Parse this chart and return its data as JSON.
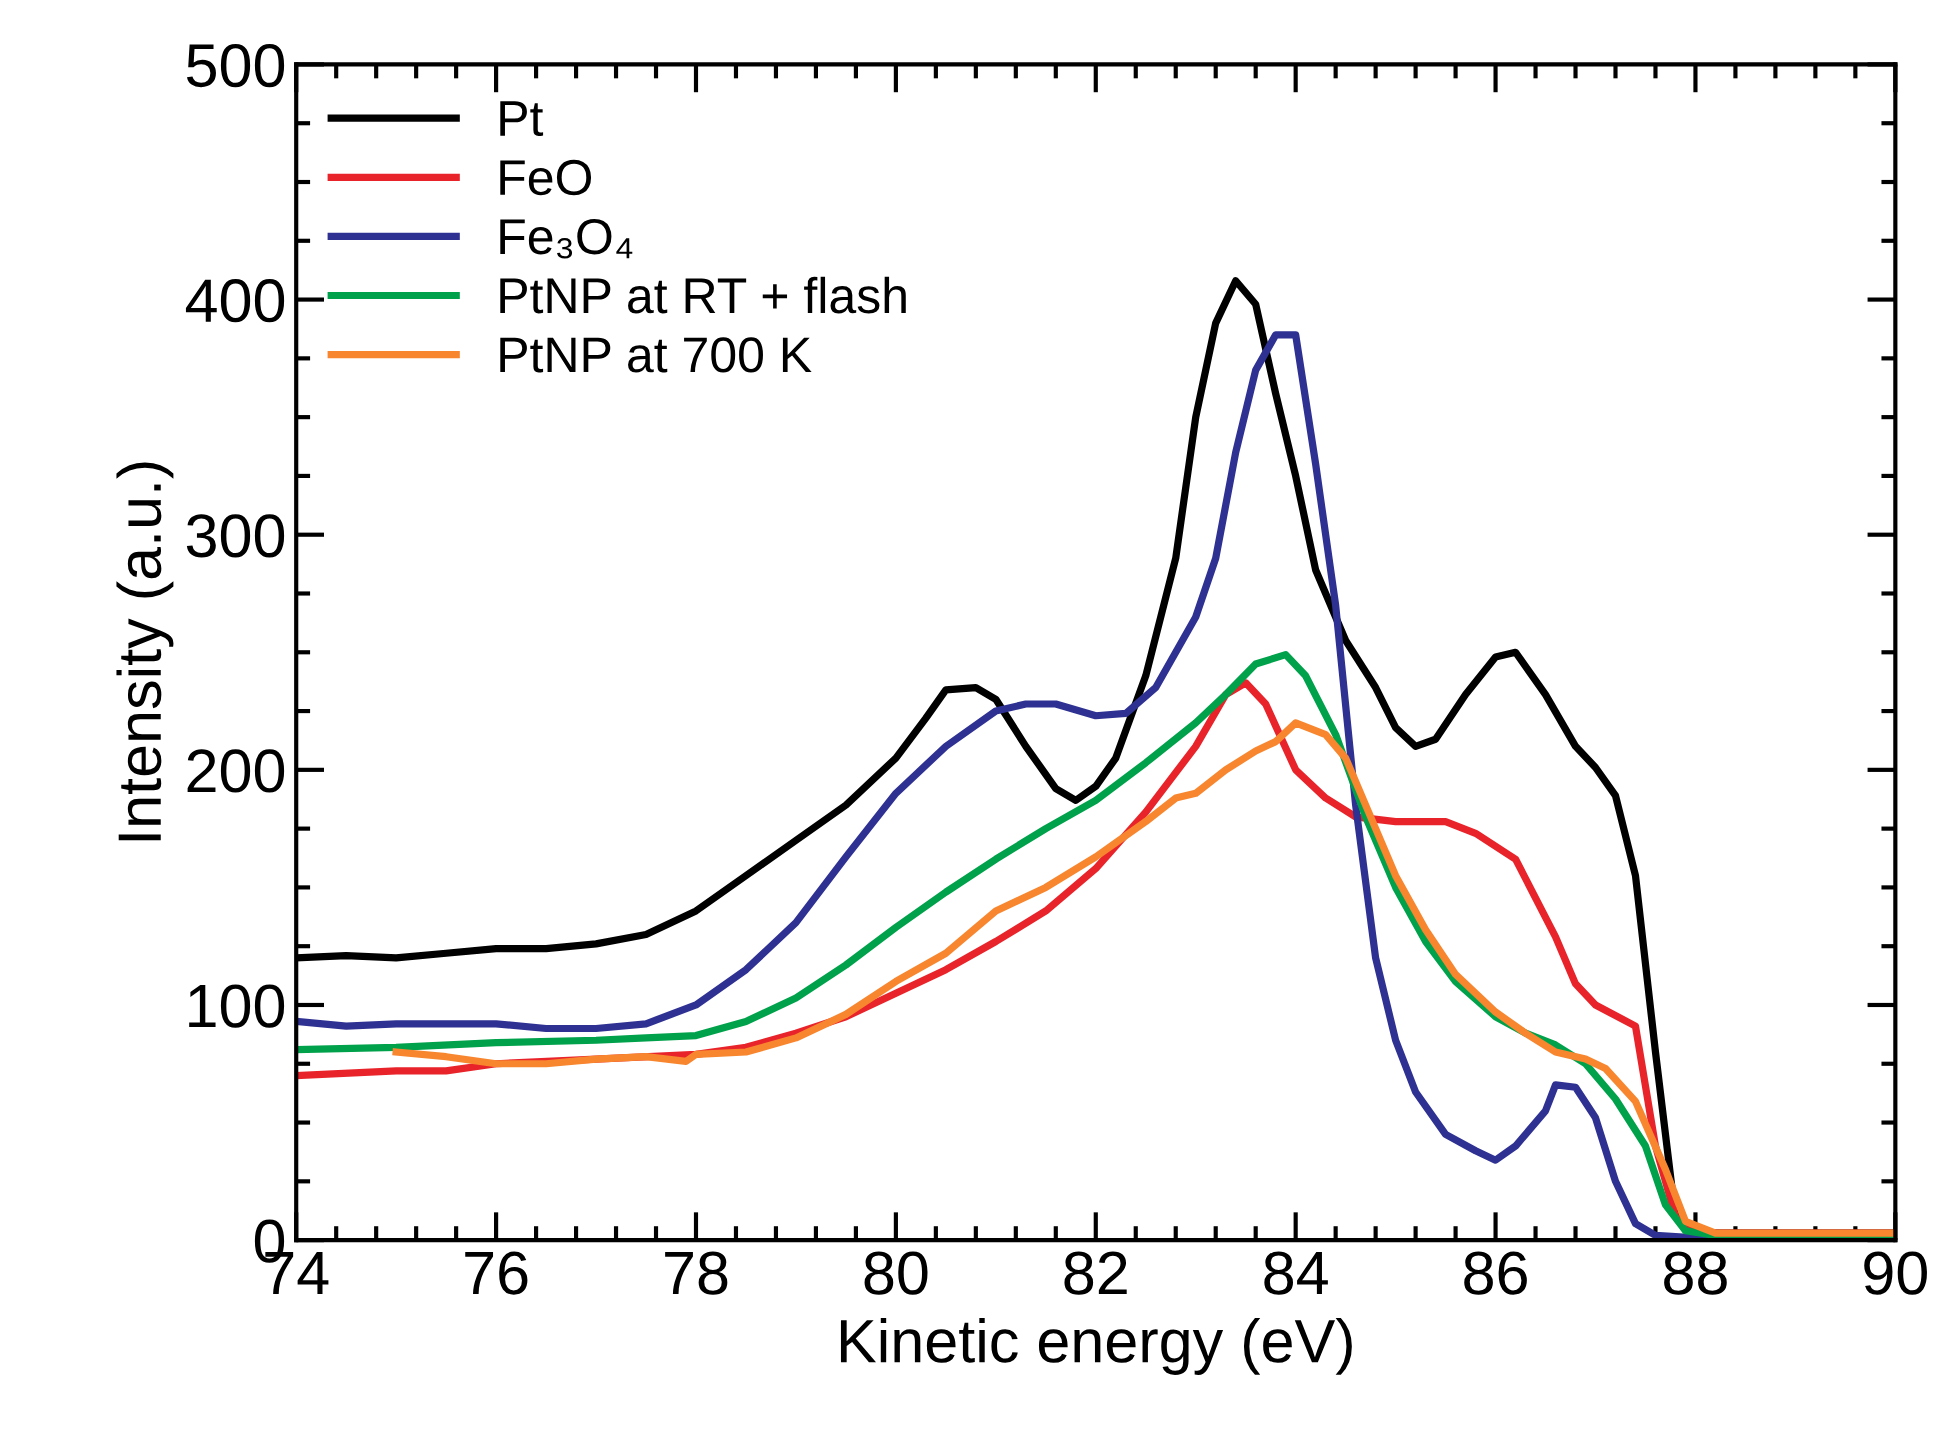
{
  "chart_data": {
    "type": "line",
    "xlabel": "Kinetic energy (eV)",
    "ylabel": "Intensity (a.u.)",
    "xlim": [
      74,
      90
    ],
    "xticks": [
      74,
      76,
      78,
      80,
      82,
      84,
      86,
      88,
      90
    ],
    "ylim": [
      0,
      500
    ],
    "yticks": [
      0,
      100,
      200,
      300,
      400,
      500
    ],
    "legend": "top left",
    "grid": false,
    "line_style": "solid",
    "marker": "none",
    "series": [
      {
        "name": "Pt",
        "color": "#000000",
        "x": [
          74,
          74.5,
          75,
          75.5,
          76,
          76.5,
          77,
          77.5,
          78,
          78.5,
          79,
          79.5,
          80,
          80.3,
          80.5,
          80.8,
          81,
          81.3,
          81.6,
          81.8,
          82,
          82.2,
          82.5,
          82.8,
          83,
          83.2,
          83.4,
          83.6,
          83.8,
          84,
          84.2,
          84.5,
          84.8,
          85,
          85.2,
          85.4,
          85.7,
          86,
          86.2,
          86.5,
          86.8,
          87,
          87.2,
          87.4,
          87.6,
          87.8,
          88,
          89,
          90
        ],
        "values": [
          120,
          121,
          120,
          122,
          124,
          124,
          126,
          130,
          140,
          155,
          170,
          185,
          205,
          222,
          234,
          235,
          230,
          210,
          192,
          187,
          193,
          205,
          240,
          290,
          350,
          390,
          408,
          398,
          360,
          325,
          285,
          255,
          235,
          218,
          210,
          213,
          232,
          248,
          250,
          232,
          210,
          201,
          189,
          155,
          80,
          10,
          3,
          3,
          3
        ]
      },
      {
        "name": "FeO",
        "color": "#e8232a",
        "x": [
          74,
          75,
          75.5,
          76,
          77,
          78,
          78.5,
          79,
          79.5,
          80,
          80.5,
          81,
          81.5,
          82,
          82.5,
          83,
          83.3,
          83.5,
          83.7,
          84,
          84.3,
          84.6,
          85,
          85.5,
          85.8,
          86.2,
          86.6,
          86.8,
          87,
          87.4,
          87.6,
          87.8,
          88,
          90
        ],
        "values": [
          70,
          72,
          72,
          75,
          77,
          79,
          82,
          88,
          95,
          105,
          115,
          127,
          140,
          158,
          182,
          210,
          232,
          237,
          228,
          200,
          188,
          180,
          178,
          178,
          173,
          162,
          129,
          109,
          100,
          91,
          40,
          10,
          3,
          3
        ]
      },
      {
        "name": "Fe₃O₄",
        "color": "#2e3192",
        "x": [
          74,
          74.5,
          75,
          75.5,
          76,
          76.5,
          77,
          77.5,
          78,
          78.5,
          79,
          79.5,
          80,
          80.5,
          81,
          81.3,
          81.6,
          82,
          82.3,
          82.6,
          83,
          83.2,
          83.4,
          83.6,
          83.8,
          84,
          84.2,
          84.4,
          84.6,
          84.8,
          85,
          85.2,
          85.5,
          85.8,
          86,
          86.2,
          86.5,
          86.6,
          86.8,
          87,
          87.2,
          87.4,
          87.6,
          88,
          90
        ],
        "values": [
          93,
          91,
          92,
          92,
          92,
          90,
          90,
          92,
          100,
          115,
          135,
          163,
          190,
          210,
          225,
          228,
          228,
          223,
          224,
          235,
          265,
          290,
          335,
          370,
          385,
          385,
          330,
          270,
          185,
          120,
          85,
          63,
          45,
          38,
          34,
          40,
          55,
          66,
          65,
          52,
          25,
          7,
          2,
          1,
          1
        ]
      },
      {
        "name": "PtNP at RT + flash",
        "color": "#00a14b",
        "x": [
          74,
          75,
          76,
          77,
          77.5,
          78,
          78.5,
          79,
          79.5,
          80,
          80.5,
          81,
          81.5,
          82,
          82.5,
          83,
          83.3,
          83.6,
          83.9,
          84.1,
          84.4,
          84.7,
          85,
          85.3,
          85.6,
          86,
          86.3,
          86.6,
          86.9,
          87.2,
          87.5,
          87.7,
          87.9,
          88.2,
          90
        ],
        "values": [
          81,
          82,
          84,
          85,
          86,
          87,
          93,
          103,
          117,
          133,
          148,
          162,
          175,
          187,
          203,
          220,
          232,
          245,
          249,
          240,
          215,
          180,
          150,
          127,
          110,
          95,
          88,
          83,
          75,
          60,
          40,
          15,
          4,
          2,
          2
        ]
      },
      {
        "name": "PtNP at 700 K",
        "color": "#f7862f",
        "x": [
          75,
          75.5,
          76,
          76.5,
          77,
          77.5,
          77.9,
          78,
          78.5,
          79,
          79.5,
          80,
          80.5,
          81,
          81.5,
          82,
          82.5,
          82.8,
          83,
          83.3,
          83.6,
          83.8,
          84,
          84.3,
          84.5,
          84.8,
          85,
          85.3,
          85.6,
          86,
          86.3,
          86.6,
          86.9,
          87.1,
          87.4,
          87.7,
          87.9,
          88.2,
          90
        ],
        "values": [
          80,
          78,
          75,
          75,
          77,
          78,
          76,
          79,
          80,
          86,
          96,
          110,
          122,
          140,
          150,
          163,
          178,
          188,
          190,
          200,
          208,
          212,
          220,
          215,
          205,
          175,
          155,
          132,
          113,
          97,
          88,
          80,
          77,
          73,
          59,
          30,
          8,
          3,
          3
        ]
      }
    ]
  }
}
